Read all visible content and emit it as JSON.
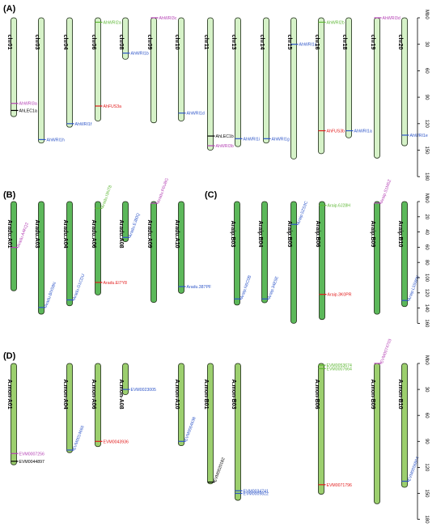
{
  "colors": {
    "chr_light": "#d6f2c8",
    "chr_dark": "#5cb85a",
    "chr_mid": "#9ccf6e",
    "purple": "#b542b5",
    "black": "#000000",
    "blue": "#2d55c8",
    "red": "#e21b1b",
    "green": "#5fb836"
  },
  "axis_unit": "Mb",
  "panels": [
    {
      "label": "(A)",
      "style": "light",
      "scale_ticks": [
        "0",
        "30",
        "60",
        "90",
        "120",
        "150",
        "180"
      ],
      "chromosomes": [
        {
          "name": "chr01",
          "len": 112,
          "genes": [
            {
              "name": "AhWRI3a",
              "pos": 97,
              "color": "purple"
            },
            {
              "name": "AhLEC1a",
              "pos": 105,
              "color": "black"
            }
          ]
        },
        {
          "name": "chr03",
          "len": 142,
          "genes": [
            {
              "name": "AhWRI1h",
              "pos": 138,
              "color": "blue"
            }
          ]
        },
        {
          "name": "chr04",
          "len": 124,
          "genes": [
            {
              "name": "AhWRI1f",
              "pos": 120,
              "color": "blue"
            }
          ]
        },
        {
          "name": "chr06",
          "len": 117,
          "genes": [
            {
              "name": "AhWRI2a",
              "pos": 5,
              "color": "green"
            },
            {
              "name": "AhFUS3a",
              "pos": 100,
              "color": "red"
            }
          ]
        },
        {
          "name": "chr08",
          "len": 47,
          "genes": [
            {
              "name": "AhWRI1b",
              "pos": 40,
              "color": "blue"
            }
          ]
        },
        {
          "name": "chr09",
          "len": 119,
          "genes": [
            {
              "name": "AhWRI3c",
              "pos": 0,
              "color": "purple"
            }
          ]
        },
        {
          "name": "chr10",
          "len": 117,
          "genes": [
            {
              "name": "AhWRI1d",
              "pos": 108,
              "color": "blue"
            }
          ]
        },
        {
          "name": "chr11",
          "len": 150,
          "genes": [
            {
              "name": "AhLEC1b",
              "pos": 134,
              "color": "black"
            },
            {
              "name": "AhWRI3b",
              "pos": 145,
              "color": "purple"
            }
          ]
        },
        {
          "name": "chr13",
          "len": 146,
          "genes": [
            {
              "name": "AhWRI1i",
              "pos": 137,
              "color": "blue"
            }
          ]
        },
        {
          "name": "chr14",
          "len": 142,
          "genes": [
            {
              "name": "AhWRI1g",
              "pos": 137,
              "color": "blue"
            }
          ]
        },
        {
          "name": "chr15",
          "len": 160,
          "genes": [
            {
              "name": "AhWRI1c",
              "pos": 30,
              "color": "blue"
            }
          ]
        },
        {
          "name": "chr16",
          "len": 154,
          "genes": [
            {
              "name": "AhWRI2b",
              "pos": 5,
              "color": "green"
            },
            {
              "name": "AhFUS3b",
              "pos": 128,
              "color": "red"
            }
          ]
        },
        {
          "name": "chr18",
          "len": 136,
          "genes": [
            {
              "name": "AhWRI1a",
              "pos": 128,
              "color": "blue"
            }
          ]
        },
        {
          "name": "chr19",
          "len": 159,
          "genes": [
            {
              "name": "AhWRI3d",
              "pos": 0,
              "color": "purple"
            }
          ]
        },
        {
          "name": "chr20",
          "len": 145,
          "genes": [
            {
              "name": "AhWRI1e",
              "pos": 133,
              "color": "blue"
            }
          ]
        }
      ]
    },
    {
      "label": "(B)",
      "style": "dark",
      "chromosomes": [
        {
          "name": "Aradu.A01",
          "len": 107,
          "genes": [
            {
              "name": "Aradu.A4KQ2",
              "pos": 55,
              "color": "purple",
              "rotated": true
            }
          ]
        },
        {
          "name": "Aradu.A03",
          "len": 135,
          "genes": [
            {
              "name": "Aradu.BNS8N",
              "pos": 127,
              "color": "blue",
              "rotated": true
            }
          ]
        },
        {
          "name": "Aradu.A04",
          "len": 125,
          "genes": [
            {
              "name": "Aradu.G1CDU",
              "pos": 118,
              "color": "blue",
              "rotated": true
            }
          ]
        },
        {
          "name": "Aradu.A06",
          "len": 112,
          "genes": [
            {
              "name": "Aradu.I3NT8",
              "pos": 8,
              "color": "green",
              "rotated": true
            },
            {
              "name": "Aradu.EI7Y8",
              "pos": 97,
              "color": "red"
            }
          ]
        },
        {
          "name": "Aradu.A08",
          "len": 48,
          "genes": [
            {
              "name": "Aradu.EJ80Q",
              "pos": 43,
              "color": "blue",
              "rotated": true
            }
          ]
        },
        {
          "name": "Aradu.A09",
          "len": 121,
          "genes": [
            {
              "name": "Aradu.P6U8G",
              "pos": 2,
              "color": "purple",
              "rotated": true
            }
          ]
        },
        {
          "name": "Aradu.A10",
          "len": 110,
          "genes": [
            {
              "name": "Aradu.387PF",
              "pos": 102,
              "color": "blue"
            }
          ]
        }
      ]
    },
    {
      "label": "(C)",
      "style": "dark",
      "scale_ticks": [
        "0",
        "20",
        "40",
        "60",
        "80",
        "100",
        "120",
        "140",
        "160"
      ],
      "chromosomes": [
        {
          "name": "Araip.B03",
          "len": 136,
          "genes": [
            {
              "name": "Araip.N6C0B",
              "pos": 128,
              "color": "blue",
              "rotated": true
            }
          ]
        },
        {
          "name": "Araip.B04",
          "len": 133,
          "genes": [
            {
              "name": "Araip.34E5E",
              "pos": 128,
              "color": "blue",
              "rotated": true
            }
          ]
        },
        {
          "name": "Araip.B05",
          "len": 160,
          "genes": [
            {
              "name": "Araip.5ZS3C",
              "pos": 30,
              "color": "blue",
              "rotated": true
            }
          ]
        },
        {
          "name": "Araip.B06",
          "len": 155,
          "genes": [
            {
              "name": "Araip.6J28H",
              "pos": 5,
              "color": "green"
            },
            {
              "name": "Araip.3K0PR",
              "pos": 122,
              "color": "red"
            }
          ]
        },
        {
          "name": "Araip.B09",
          "len": 148,
          "genes": [
            {
              "name": "Araip.S1M6Z",
              "pos": 2,
              "color": "purple",
              "rotated": true
            }
          ]
        },
        {
          "name": "Araip.B10",
          "len": 138,
          "genes": [
            {
              "name": "Araip.L55WW",
              "pos": 130,
              "color": "blue",
              "rotated": true
            }
          ]
        }
      ]
    },
    {
      "label": "(D)",
      "style": "mid",
      "scale_ticks": [
        "0",
        "30",
        "60",
        "90",
        "120",
        "150",
        "180"
      ],
      "chromosomes": [
        {
          "name": "A.mon-A01",
          "len": 117,
          "genes": [
            {
              "name": "EVM0007256",
              "pos": 104,
              "color": "purple"
            },
            {
              "name": "EVM0044897",
              "pos": 113,
              "color": "black"
            }
          ]
        },
        {
          "name": "A.mon-A04",
          "len": 103,
          "genes": [
            {
              "name": "EVM0014666",
              "pos": 100,
              "color": "blue",
              "rotated": true
            }
          ]
        },
        {
          "name": "A.mon-A06",
          "len": 96,
          "genes": [
            {
              "name": "EVM0043936",
              "pos": 90,
              "color": "red"
            }
          ]
        },
        {
          "name": "A.mon-A08",
          "len": 36,
          "genes": [
            {
              "name": "EVM0023005",
              "pos": 30,
              "color": "blue"
            }
          ]
        },
        {
          "name": "A.mon-A10",
          "len": 95,
          "genes": [
            {
              "name": "EVM0064638",
              "pos": 90,
              "color": "blue",
              "rotated": true
            }
          ]
        },
        {
          "name": "A.mon-B01",
          "len": 139,
          "genes": [
            {
              "name": "EVM0020182",
              "pos": 137,
              "color": "black",
              "rotated": true
            }
          ]
        },
        {
          "name": "A.mon-B03",
          "len": 158,
          "genes": [
            {
              "name": "EVM0034741",
              "pos": 147,
              "color": "blue"
            },
            {
              "name": "EVM0009822",
              "pos": 150,
              "color": "blue"
            }
          ]
        },
        {
          "name": "A.mon-B06",
          "len": 151,
          "genes": [
            {
              "name": "EVM0053674",
              "pos": 2,
              "color": "green"
            },
            {
              "name": "EVM0007664",
              "pos": 6,
              "color": "green"
            },
            {
              "name": "EVM0071796",
              "pos": 140,
              "color": "red"
            }
          ]
        },
        {
          "name": "A.mon-B09",
          "len": 162,
          "genes": [
            {
              "name": "EVM0074703",
              "pos": 0,
              "color": "purple",
              "rotated": true
            }
          ]
        },
        {
          "name": "A.mon-B10",
          "len": 143,
          "genes": [
            {
              "name": "EVM0056864",
              "pos": 136,
              "color": "blue",
              "rotated": true
            }
          ]
        }
      ]
    }
  ]
}
